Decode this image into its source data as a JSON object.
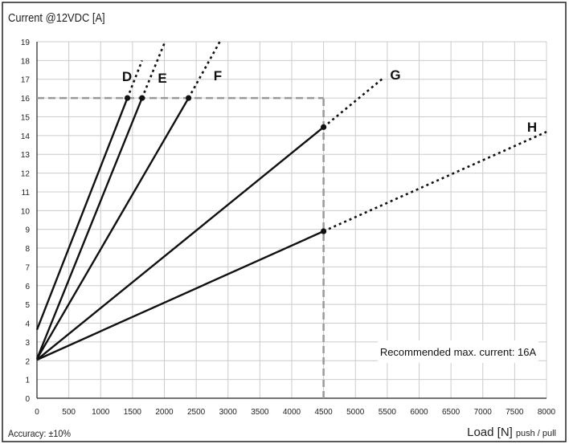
{
  "chart_data": {
    "type": "line",
    "title": "Current @12VDC [A]",
    "xlabel_main": "Load [N]",
    "xlabel_sub": "push / pull",
    "ylabel": "Current @12VDC [A]",
    "accuracy_note": "Accuracy: ±10%",
    "xlim": [
      0,
      8000
    ],
    "ylim": [
      0,
      19
    ],
    "x_ticks": [
      0,
      500,
      1000,
      1500,
      2000,
      2500,
      3000,
      3500,
      4000,
      4500,
      5000,
      5500,
      6000,
      6500,
      7000,
      7500,
      8000
    ],
    "y_ticks": [
      0,
      1,
      2,
      3,
      4,
      5,
      6,
      7,
      8,
      9,
      10,
      11,
      12,
      13,
      14,
      15,
      16,
      17,
      18,
      19
    ],
    "grid": true,
    "series": [
      {
        "name": "D",
        "x_start": 0,
        "y_start": 3.65,
        "x_solid_end": 1420,
        "y_solid_end": 16,
        "x_dotted_end": 1650,
        "y_dotted_end": 18.0
      },
      {
        "name": "E",
        "x_start": 0,
        "y_start": 2.1,
        "x_solid_end": 1650,
        "y_solid_end": 16,
        "x_dotted_end": 2010,
        "y_dotted_end": 19.0
      },
      {
        "name": "F",
        "x_start": 0,
        "y_start": 2.1,
        "x_solid_end": 2380,
        "y_solid_end": 16,
        "x_dotted_end": 2870,
        "y_dotted_end": 19.0
      },
      {
        "name": "G",
        "x_start": 0,
        "y_start": 2.05,
        "x_solid_end": 4500,
        "y_solid_end": 14.45,
        "x_dotted_end": 5450,
        "y_dotted_end": 17.1
      },
      {
        "name": "H",
        "x_start": 0,
        "y_start": 2.05,
        "x_solid_end": 4500,
        "y_solid_end": 8.9,
        "x_dotted_end": 8000,
        "y_dotted_end": 14.2
      }
    ],
    "reference_lines": [
      {
        "type": "horizontal",
        "y": 16,
        "x_from": 0,
        "x_to": 4500,
        "style": "dashed",
        "color": "#999999"
      },
      {
        "type": "vertical",
        "x": 4500,
        "y_from": 0,
        "y_to": 16,
        "style": "dashed",
        "color": "#999999"
      }
    ],
    "annotation": "Recommended max. current: 16A",
    "colors": {
      "lines": "#111111",
      "grid": "#cccccc",
      "reference": "#999999",
      "frame": "#222222"
    }
  }
}
